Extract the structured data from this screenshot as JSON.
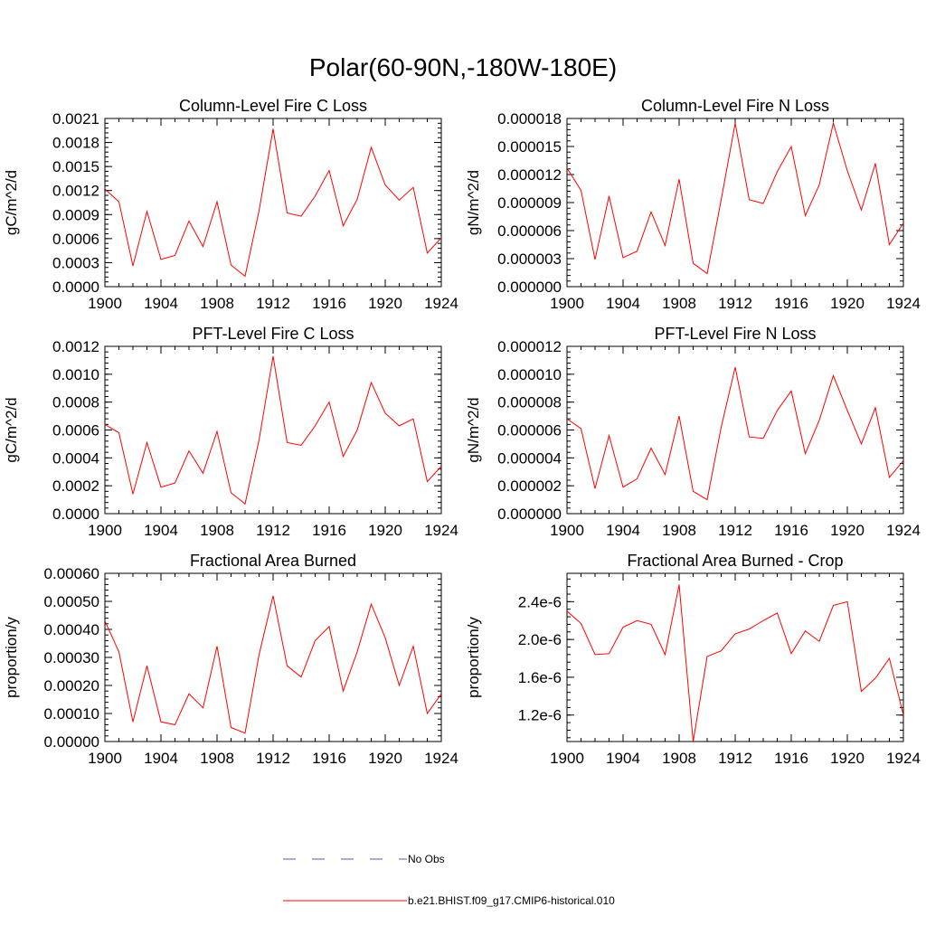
{
  "main_title": "Polar(60-90N,-180W-180E)",
  "legend": {
    "items": [
      {
        "label": "No Obs",
        "color": "#5a5ab0",
        "dash": true
      },
      {
        "label": "b.e21.BHIST.f09_g17.CMIP6-historical.010",
        "color": "#ff0000",
        "dash": false
      }
    ]
  },
  "chart_data": [
    {
      "type": "line",
      "title": "Column-Level Fire C Loss",
      "ylabel": "gC/m^2/d",
      "xlim": [
        1900,
        1924
      ],
      "ylim": [
        0,
        0.0021
      ],
      "xticks": [
        "1900",
        "1904",
        "1908",
        "1912",
        "1916",
        "1920",
        "1924"
      ],
      "yticks": [
        "0.0000",
        "0.0003",
        "0.0006",
        "0.0009",
        "0.0012",
        "0.0015",
        "0.0018",
        "0.0021"
      ],
      "x": [
        1900,
        1901,
        1902,
        1903,
        1904,
        1905,
        1906,
        1907,
        1908,
        1909,
        1910,
        1911,
        1912,
        1913,
        1914,
        1915,
        1916,
        1917,
        1918,
        1919,
        1920,
        1921,
        1922,
        1923,
        1924
      ],
      "series": [
        {
          "color": "#ff0000",
          "values": [
            0.00122,
            0.00106,
            0.00026,
            0.00094,
            0.00034,
            0.00039,
            0.00082,
            0.0005,
            0.00106,
            0.00027,
            0.00013,
            0.00095,
            0.00197,
            0.00092,
            0.00088,
            0.00113,
            0.00145,
            0.00076,
            0.00109,
            0.00174,
            0.00127,
            0.00108,
            0.00124,
            0.00042,
            0.00061
          ]
        }
      ]
    },
    {
      "type": "line",
      "title": "Column-Level Fire N Loss",
      "ylabel": "gN/m^2/d",
      "xlim": [
        1900,
        1924
      ],
      "ylim": [
        0,
        1.8e-05
      ],
      "xticks": [
        "1900",
        "1904",
        "1908",
        "1912",
        "1916",
        "1920",
        "1924"
      ],
      "yticks": [
        "0.000000",
        "0.000003",
        "0.000006",
        "0.000009",
        "0.000012",
        "0.000015",
        "0.000018"
      ],
      "x": [
        1900,
        1901,
        1902,
        1903,
        1904,
        1905,
        1906,
        1907,
        1908,
        1909,
        1910,
        1911,
        1912,
        1913,
        1914,
        1915,
        1916,
        1917,
        1918,
        1919,
        1920,
        1921,
        1922,
        1923,
        1924
      ],
      "series": [
        {
          "color": "#ff0000",
          "values": [
            1.27e-05,
            1.03e-05,
            2.9e-06,
            9.7e-06,
            3.1e-06,
            3.8e-06,
            8e-06,
            4.4e-06,
            1.15e-05,
            2.5e-06,
            1.4e-06,
            9.3e-06,
            1.75e-05,
            9.3e-06,
            8.9e-06,
            1.23e-05,
            1.5e-05,
            7.6e-06,
            1.09e-05,
            1.75e-05,
            1.24e-05,
            8.2e-06,
            1.32e-05,
            4.5e-06,
            6.8e-06
          ]
        }
      ]
    },
    {
      "type": "line",
      "title": "PFT-Level Fire C Loss",
      "ylabel": "gC/m^2/d",
      "xlim": [
        1900,
        1924
      ],
      "ylim": [
        0,
        0.0012
      ],
      "xticks": [
        "1900",
        "1904",
        "1908",
        "1912",
        "1916",
        "1920",
        "1924"
      ],
      "yticks": [
        "0.0000",
        "0.0002",
        "0.0004",
        "0.0006",
        "0.0008",
        "0.0010",
        "0.0012"
      ],
      "x": [
        1900,
        1901,
        1902,
        1903,
        1904,
        1905,
        1906,
        1907,
        1908,
        1909,
        1910,
        1911,
        1912,
        1913,
        1914,
        1915,
        1916,
        1917,
        1918,
        1919,
        1920,
        1921,
        1922,
        1923,
        1924
      ],
      "series": [
        {
          "color": "#ff0000",
          "values": [
            0.00064,
            0.00058,
            0.00014,
            0.00051,
            0.00019,
            0.00022,
            0.00045,
            0.00029,
            0.00059,
            0.00015,
            7e-05,
            0.00053,
            0.00113,
            0.00051,
            0.00049,
            0.00063,
            0.0008,
            0.00041,
            0.0006,
            0.00094,
            0.00072,
            0.00063,
            0.00068,
            0.00023,
            0.00034
          ]
        }
      ]
    },
    {
      "type": "line",
      "title": "PFT-Level Fire N Loss",
      "ylabel": "gN/m^2/d",
      "xlim": [
        1900,
        1924
      ],
      "ylim": [
        0,
        1.2e-05
      ],
      "xticks": [
        "1900",
        "1904",
        "1908",
        "1912",
        "1916",
        "1920",
        "1924"
      ],
      "yticks": [
        "0.000000",
        "0.000002",
        "0.000004",
        "0.000006",
        "0.000008",
        "0.000010",
        "0.000012"
      ],
      "x": [
        1900,
        1901,
        1902,
        1903,
        1904,
        1905,
        1906,
        1907,
        1908,
        1909,
        1910,
        1911,
        1912,
        1913,
        1914,
        1915,
        1916,
        1917,
        1918,
        1919,
        1920,
        1921,
        1922,
        1923,
        1924
      ],
      "series": [
        {
          "color": "#ff0000",
          "values": [
            6.8e-06,
            6.1e-06,
            1.8e-06,
            5.6e-06,
            1.9e-06,
            2.5e-06,
            4.7e-06,
            2.8e-06,
            7e-06,
            1.6e-06,
            1e-06,
            6.2e-06,
            1.05e-05,
            5.5e-06,
            5.4e-06,
            7.4e-06,
            8.8e-06,
            4.3e-06,
            6.7e-06,
            9.9e-06,
            7.4e-06,
            5e-06,
            7.6e-06,
            2.6e-06,
            3.8e-06
          ]
        }
      ]
    },
    {
      "type": "line",
      "title": "Fractional Area Burned",
      "ylabel": "proportion/y",
      "xlim": [
        1900,
        1924
      ],
      "ylim": [
        0,
        0.0006
      ],
      "xticks": [
        "1900",
        "1904",
        "1908",
        "1912",
        "1916",
        "1920",
        "1924"
      ],
      "yticks": [
        "0.00000",
        "0.00010",
        "0.00020",
        "0.00030",
        "0.00040",
        "0.00050",
        "0.00060"
      ],
      "x": [
        1900,
        1901,
        1902,
        1903,
        1904,
        1905,
        1906,
        1907,
        1908,
        1909,
        1910,
        1911,
        1912,
        1913,
        1914,
        1915,
        1916,
        1917,
        1918,
        1919,
        1920,
        1921,
        1922,
        1923,
        1924
      ],
      "series": [
        {
          "color": "#ff0000",
          "values": [
            0.00043,
            0.00032,
            7e-05,
            0.00027,
            7e-05,
            6e-05,
            0.00017,
            0.00012,
            0.00034,
            5e-05,
            3e-05,
            0.00031,
            0.00052,
            0.00027,
            0.00023,
            0.00036,
            0.00041,
            0.00018,
            0.00032,
            0.00049,
            0.00037,
            0.0002,
            0.00034,
            0.0001,
            0.00017
          ]
        }
      ]
    },
    {
      "type": "line",
      "title": "Fractional Area Burned - Crop",
      "ylabel": "proportion/y",
      "xlim": [
        1900,
        1924
      ],
      "ylim": [
        9.2e-07,
        2.7e-06
      ],
      "xticks": [
        "1900",
        "1904",
        "1908",
        "1912",
        "1916",
        "1920",
        "1924"
      ],
      "ytick_values": [
        1.2e-06,
        1.6e-06,
        2e-06,
        2.4e-06
      ],
      "yticks": [
        "1.2e-6",
        "1.6e-6",
        "2.0e-6",
        "2.4e-6"
      ],
      "x": [
        1900,
        1901,
        1902,
        1903,
        1904,
        1905,
        1906,
        1907,
        1908,
        1909,
        1910,
        1911,
        1912,
        1913,
        1914,
        1915,
        1916,
        1917,
        1918,
        1919,
        1920,
        1921,
        1922,
        1923,
        1924
      ],
      "series": [
        {
          "color": "#ff0000",
          "values": [
            2.3e-06,
            2.17e-06,
            1.84e-06,
            1.85e-06,
            2.13e-06,
            2.2e-06,
            2.16e-06,
            1.84e-06,
            2.58e-06,
            9.2e-07,
            1.82e-06,
            1.88e-06,
            2.06e-06,
            2.11e-06,
            2.2e-06,
            2.28e-06,
            1.85e-06,
            2.09e-06,
            1.98e-06,
            2.36e-06,
            2.4e-06,
            1.45e-06,
            1.59e-06,
            1.8e-06,
            1.2e-06
          ]
        }
      ]
    }
  ]
}
